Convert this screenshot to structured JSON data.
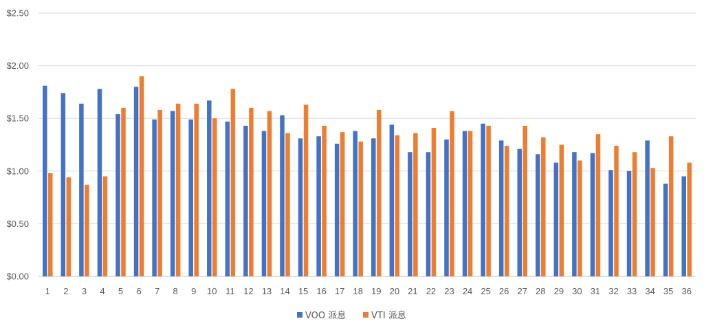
{
  "chart_data": {
    "type": "bar",
    "title": "",
    "xlabel": "",
    "ylabel": "",
    "ylim": [
      0,
      2.5
    ],
    "yticks": [
      0,
      0.5,
      1.0,
      1.5,
      2.0,
      2.5
    ],
    "ytick_labels": [
      "$0.00",
      "$0.50",
      "$1.00",
      "$1.50",
      "$2.00",
      "$2.50"
    ],
    "grid": true,
    "legend_position": "bottom",
    "categories": [
      "1",
      "2",
      "3",
      "4",
      "5",
      "6",
      "7",
      "8",
      "9",
      "10",
      "11",
      "12",
      "13",
      "14",
      "15",
      "16",
      "17",
      "18",
      "19",
      "20",
      "21",
      "22",
      "23",
      "24",
      "25",
      "26",
      "27",
      "28",
      "29",
      "30",
      "31",
      "32",
      "33",
      "34",
      "35",
      "36"
    ],
    "series": [
      {
        "name": "VOO 派息",
        "color": "#4472C4",
        "values": [
          1.81,
          1.74,
          1.64,
          1.78,
          1.54,
          1.8,
          1.49,
          1.57,
          1.49,
          1.67,
          1.47,
          1.43,
          1.38,
          1.53,
          1.31,
          1.33,
          1.26,
          1.38,
          1.31,
          1.44,
          1.18,
          1.18,
          1.3,
          1.38,
          1.45,
          1.29,
          1.21,
          1.16,
          1.08,
          1.18,
          1.17,
          1.01,
          1.0,
          1.29,
          0.88,
          0.95
        ]
      },
      {
        "name": "VTI 派息",
        "color": "#ED7D31",
        "values": [
          0.98,
          0.94,
          0.87,
          0.95,
          1.6,
          1.9,
          1.58,
          1.64,
          1.64,
          1.5,
          1.78,
          1.6,
          1.57,
          1.36,
          1.63,
          1.43,
          1.37,
          1.28,
          1.58,
          1.34,
          1.36,
          1.41,
          1.57,
          1.38,
          1.43,
          1.24,
          1.43,
          1.32,
          1.25,
          1.1,
          1.35,
          1.24,
          1.18,
          1.03,
          1.33,
          1.08
        ]
      }
    ]
  }
}
